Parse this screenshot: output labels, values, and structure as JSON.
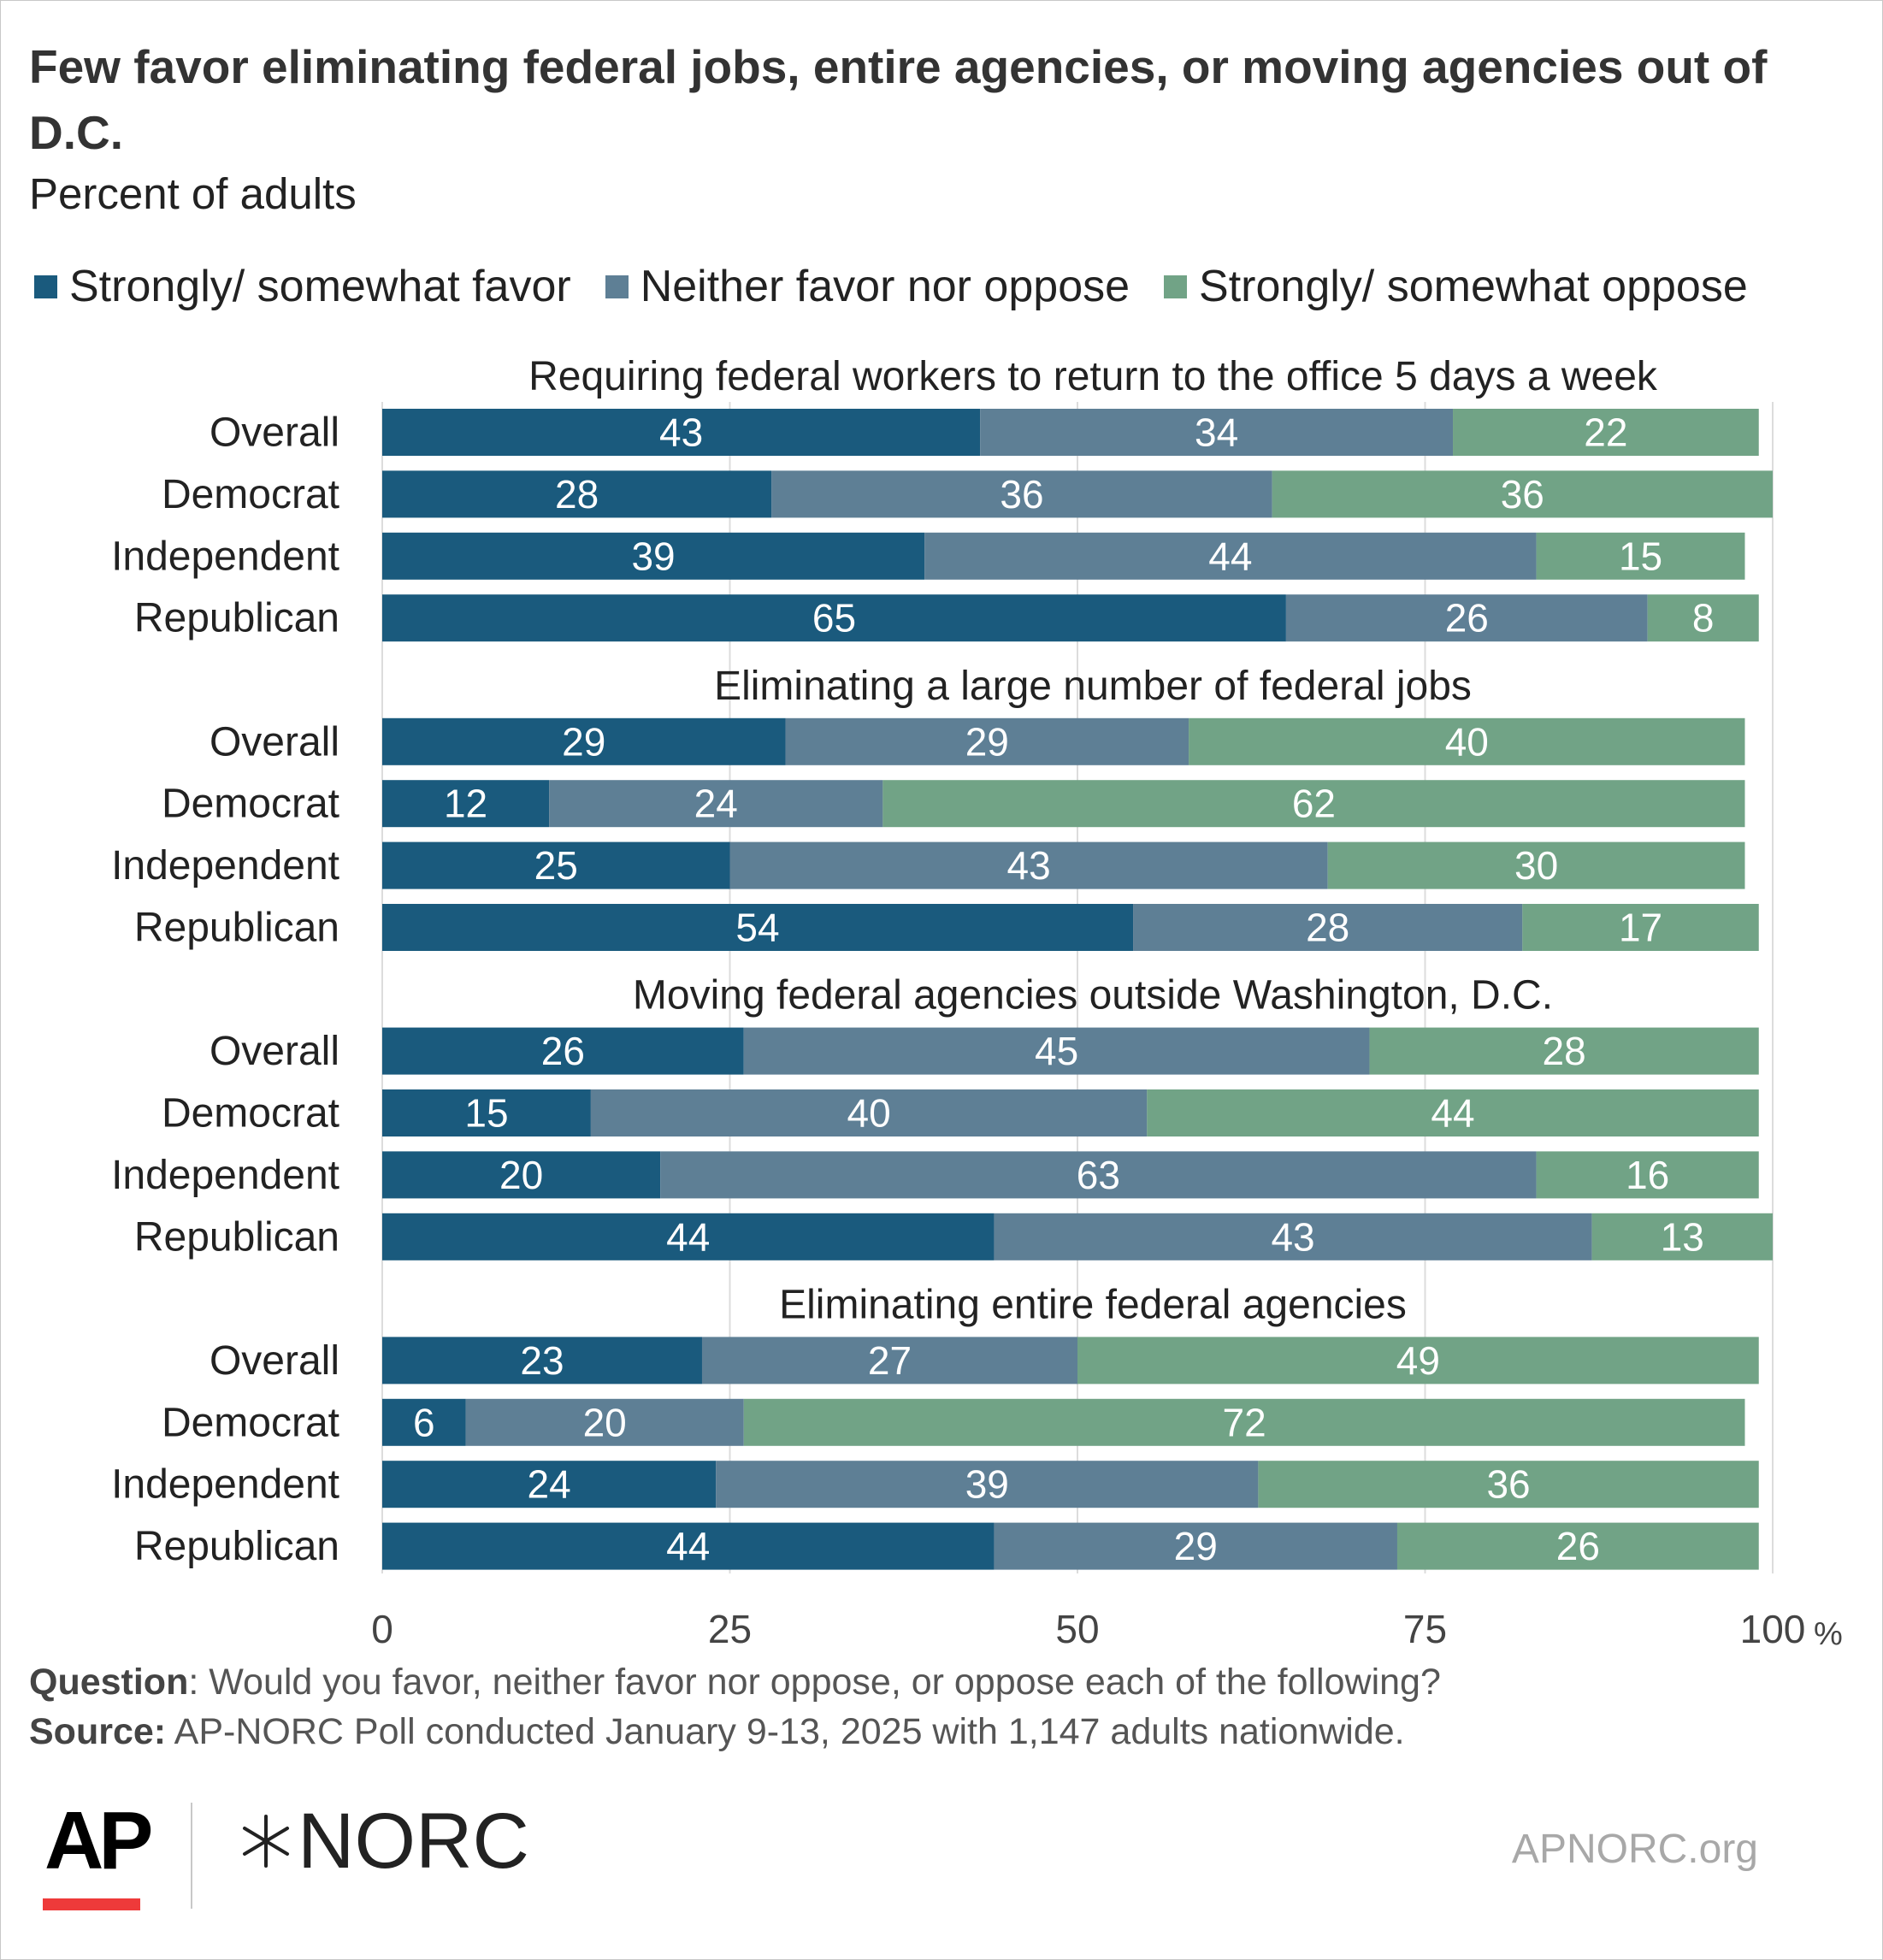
{
  "header": {
    "title": "Few favor eliminating federal jobs, entire agencies, or moving agencies out of D.C.",
    "subtitle": "Percent of adults"
  },
  "legend": [
    {
      "label": "Strongly/ somewhat favor",
      "color": "#1a5a7d"
    },
    {
      "label": "Neither favor nor oppose",
      "color": "#5e7f95"
    },
    {
      "label": "Strongly/ somewhat oppose",
      "color": "#71a386"
    }
  ],
  "chart_data": {
    "type": "bar",
    "orientation": "horizontal",
    "stacked": true,
    "title": "Few favor eliminating federal jobs, entire agencies, or moving agencies out of D.C.",
    "subtitle": "Percent of adults",
    "series_names": [
      "Strongly/ somewhat favor",
      "Neither favor nor oppose",
      "Strongly/ somewhat oppose"
    ],
    "xlim": [
      0,
      100
    ],
    "x_ticks": [
      "0",
      "25",
      "50",
      "75",
      "100"
    ],
    "x_unit": "%",
    "grid": true,
    "legend_position": "top",
    "panels": [
      {
        "title": "Requiring federal workers to return to the office 5 days a week",
        "rows": [
          {
            "label": "Overall",
            "values": [
              43,
              34,
              22
            ]
          },
          {
            "label": "Democrat",
            "values": [
              28,
              36,
              36
            ]
          },
          {
            "label": "Independent",
            "values": [
              39,
              44,
              15
            ]
          },
          {
            "label": "Republican",
            "values": [
              65,
              26,
              8
            ]
          }
        ]
      },
      {
        "title": "Eliminating a large number of federal jobs",
        "rows": [
          {
            "label": "Overall",
            "values": [
              29,
              29,
              40
            ]
          },
          {
            "label": "Democrat",
            "values": [
              12,
              24,
              62
            ]
          },
          {
            "label": "Independent",
            "values": [
              25,
              43,
              30
            ]
          },
          {
            "label": "Republican",
            "values": [
              54,
              28,
              17
            ]
          }
        ]
      },
      {
        "title": "Moving federal agencies outside Washington, D.C.",
        "rows": [
          {
            "label": "Overall",
            "values": [
              26,
              45,
              28
            ]
          },
          {
            "label": "Democrat",
            "values": [
              15,
              40,
              44
            ]
          },
          {
            "label": "Independent",
            "values": [
              20,
              63,
              16
            ]
          },
          {
            "label": "Republican",
            "values": [
              44,
              43,
              13
            ]
          }
        ]
      },
      {
        "title": "Eliminating entire federal agencies",
        "rows": [
          {
            "label": "Overall",
            "values": [
              23,
              27,
              49
            ]
          },
          {
            "label": "Democrat",
            "values": [
              6,
              20,
              72
            ]
          },
          {
            "label": "Independent",
            "values": [
              24,
              39,
              36
            ]
          },
          {
            "label": "Republican",
            "values": [
              44,
              29,
              26
            ]
          }
        ]
      }
    ]
  },
  "notes": {
    "question_label": "Question",
    "question_text": ": Would you favor, neither favor nor oppose, or oppose each of the following?",
    "source_label": "Source:",
    "source_text": " AP-NORC Poll conducted January 9-13, 2025 with 1,147 adults nationwide."
  },
  "footer": {
    "ap_logo": "AP",
    "norc_logo": "NORC",
    "website": "APNORC.org"
  }
}
